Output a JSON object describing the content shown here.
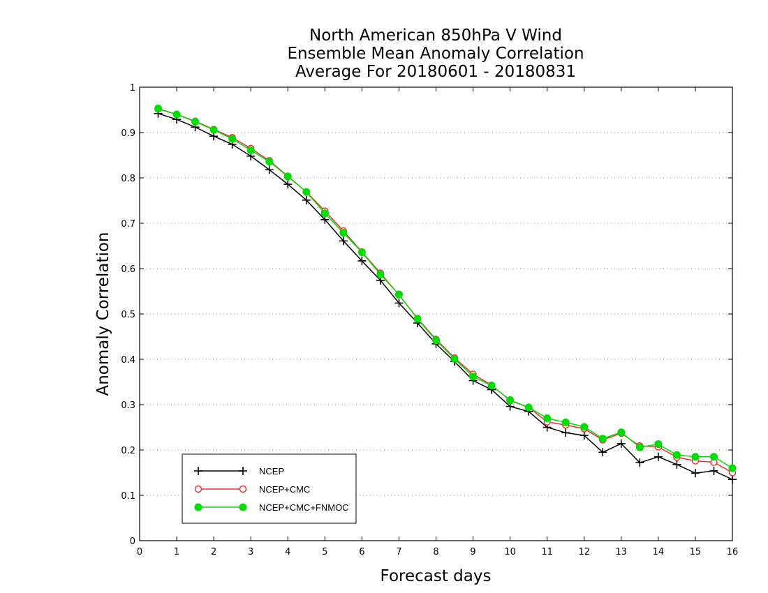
{
  "chart_data": {
    "type": "line",
    "title_lines": [
      "North American 850hPa V Wind",
      "Ensemble Mean Anomaly Correlation",
      "Average For 20180601 - 20180831"
    ],
    "xlabel": "Forecast days",
    "ylabel": "Anomaly Correlation",
    "xlim": [
      0,
      16
    ],
    "ylim": [
      0,
      1
    ],
    "xticks": [
      "0",
      "1",
      "2",
      "3",
      "4",
      "5",
      "6",
      "7",
      "8",
      "9",
      "10",
      "11",
      "12",
      "13",
      "14",
      "15",
      "16"
    ],
    "yticks": [
      "0",
      "0.1",
      "0.2",
      "0.3",
      "0.4",
      "0.5",
      "0.6",
      "0.7",
      "0.8",
      "0.9",
      "1"
    ],
    "grid": "horizontal dotted",
    "legend_placement": "bottom-left",
    "x": [
      0.5,
      1,
      1.5,
      2,
      2.5,
      3,
      3.5,
      4,
      4.5,
      5,
      5.5,
      6,
      6.5,
      7,
      7.5,
      8,
      8.5,
      9,
      9.5,
      10,
      10.5,
      11,
      11.5,
      12,
      12.5,
      13,
      13.5,
      14,
      14.5,
      15,
      15.5,
      16
    ],
    "series": [
      {
        "name": "NCEP",
        "color": "#000000",
        "marker": "plus",
        "values": [
          0.942,
          0.929,
          0.912,
          0.892,
          0.874,
          0.848,
          0.818,
          0.786,
          0.751,
          0.708,
          0.661,
          0.617,
          0.574,
          0.524,
          0.48,
          0.434,
          0.395,
          0.353,
          0.333,
          0.296,
          0.285,
          0.25,
          0.238,
          0.232,
          0.195,
          0.214,
          0.172,
          0.185,
          0.168,
          0.149,
          0.154,
          0.135
        ]
      },
      {
        "name": "NCEP+CMC",
        "color": "#e83030",
        "marker": "open-circle",
        "values": [
          0.952,
          0.94,
          0.925,
          0.907,
          0.889,
          0.865,
          0.838,
          0.804,
          0.769,
          0.727,
          0.683,
          0.637,
          0.59,
          0.542,
          0.49,
          0.444,
          0.403,
          0.367,
          0.343,
          0.309,
          0.294,
          0.262,
          0.255,
          0.247,
          0.222,
          0.237,
          0.209,
          0.207,
          0.184,
          0.176,
          0.173,
          0.15
        ]
      },
      {
        "name": "NCEP+CMC+FNMOC",
        "color": "#00dd00",
        "marker": "filled-circle",
        "values": [
          0.953,
          0.94,
          0.924,
          0.906,
          0.886,
          0.861,
          0.836,
          0.803,
          0.769,
          0.722,
          0.679,
          0.636,
          0.587,
          0.543,
          0.489,
          0.442,
          0.401,
          0.362,
          0.342,
          0.31,
          0.294,
          0.27,
          0.261,
          0.251,
          0.225,
          0.239,
          0.206,
          0.213,
          0.189,
          0.185,
          0.185,
          0.16
        ]
      }
    ]
  }
}
